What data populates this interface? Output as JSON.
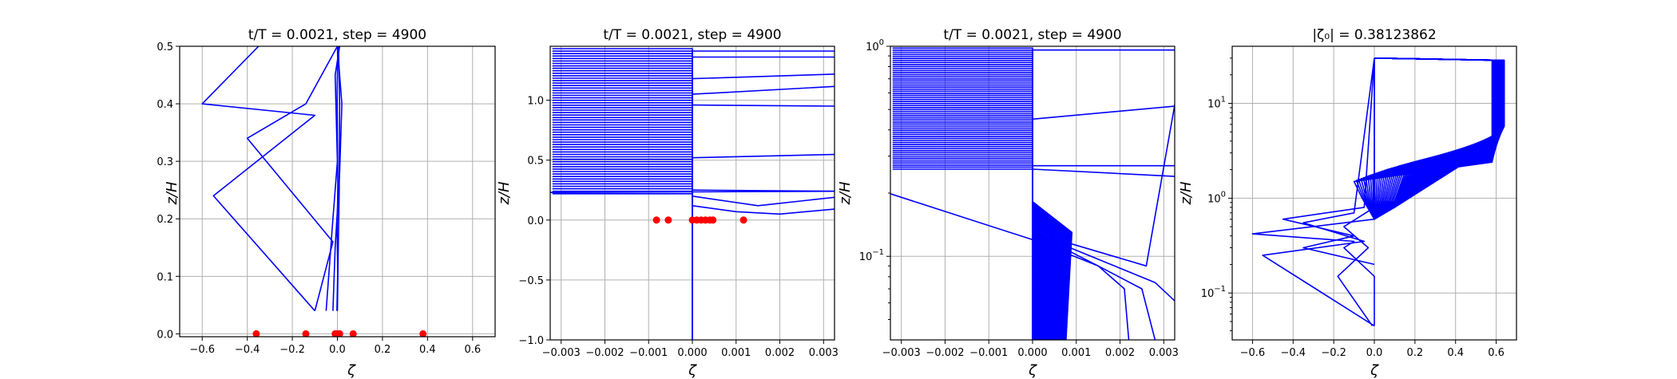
{
  "chart_data": [
    {
      "type": "line",
      "title": "t/T = 0.0021, step = 4900",
      "xlabel": "ζ",
      "ylabel": "z/H",
      "xlim": [
        -0.7,
        0.7
      ],
      "ylim": [
        -0.005,
        0.5
      ],
      "xscale": "linear",
      "yscale": "linear",
      "grid": true,
      "xticks": [
        -0.6,
        -0.4,
        -0.2,
        0.0,
        0.2,
        0.4,
        0.6
      ],
      "xtick_labels": [
        "−0.6",
        "−0.4",
        "−0.2",
        "0.0",
        "0.2",
        "0.4",
        "0.6"
      ],
      "yticks": [
        0.0,
        0.1,
        0.2,
        0.3,
        0.4,
        0.5
      ],
      "ytick_labels": [
        "0.0",
        "0.1",
        "0.2",
        "0.3",
        "0.4",
        "0.5"
      ],
      "series": [
        {
          "x": [
            -0.002,
            0.001,
            -0.001,
            0.002,
            0.0,
            -0.001,
            0.001,
            0.0
          ],
          "y": [
            0.04,
            0.1,
            0.18,
            0.26,
            0.34,
            0.42,
            0.48,
            0.5
          ]
        },
        {
          "x": [
            -0.02,
            -0.01,
            0.01,
            0.02,
            0.0
          ],
          "y": [
            0.04,
            0.15,
            0.28,
            0.4,
            0.5
          ]
        },
        {
          "x": [
            0.0,
            0.004,
            0.008,
            0.01,
            0.005
          ],
          "y": [
            0.04,
            0.15,
            0.25,
            0.4,
            0.5
          ]
        },
        {
          "x": [
            -0.05,
            -0.02,
            0.0,
            -0.01,
            0.01
          ],
          "y": [
            0.04,
            0.2,
            0.3,
            0.45,
            0.5
          ]
        },
        {
          "x": [
            -0.1,
            -0.55,
            -0.1,
            -0.6,
            -0.35
          ],
          "y": [
            0.04,
            0.24,
            0.38,
            0.4,
            0.5
          ]
        },
        {
          "x": [
            -0.1,
            -0.02,
            -0.4,
            -0.14,
            0.0
          ],
          "y": [
            0.04,
            0.16,
            0.34,
            0.4,
            0.5
          ]
        }
      ],
      "markers": {
        "x": [
          -0.36,
          -0.14,
          -0.01,
          0.0,
          0.01,
          0.07,
          0.38
        ],
        "y": [
          0.0,
          0.0,
          0.0,
          0.0,
          0.0,
          0.0,
          0.0
        ]
      }
    },
    {
      "type": "line",
      "title": "t/T = 0.0021, step = 4900",
      "xlabel": "ζ",
      "ylabel": "z/H",
      "xlim": [
        -0.00325,
        0.00325
      ],
      "ylim": [
        -1.0,
        1.45
      ],
      "xscale": "linear",
      "yscale": "linear",
      "grid": true,
      "xticks": [
        -0.003,
        -0.002,
        -0.001,
        0.0,
        0.001,
        0.002,
        0.003
      ],
      "xtick_labels": [
        "−0.003",
        "−0.002",
        "−0.001",
        "0.000",
        "0.001",
        "0.002",
        "0.003"
      ],
      "yticks": [
        -1.0,
        -0.5,
        0.0,
        0.5,
        1.0
      ],
      "ytick_labels": [
        "−1.0",
        "−0.5",
        "0.0",
        "0.5",
        "1.0"
      ],
      "fan_series": {
        "count": 60,
        "x_start": -0.0032,
        "x_end": 0.0,
        "y_bottom": 0.22,
        "y_top": 1.43
      },
      "series": [
        {
          "x": [
            -0.0033,
            0.0035
          ],
          "y": [
            0.23,
            0.24
          ]
        },
        {
          "x": [
            0.0,
            0.0035
          ],
          "y": [
            0.25,
            0.24
          ]
        },
        {
          "x": [
            0.0,
            0.001,
            0.002,
            0.0035
          ],
          "y": [
            0.12,
            0.07,
            0.05,
            0.1
          ]
        },
        {
          "x": [
            0.0,
            0.0015,
            0.0035
          ],
          "y": [
            0.2,
            0.12,
            0.2
          ]
        },
        {
          "x": [
            0.0,
            0.0035
          ],
          "y": [
            0.52,
            0.55
          ]
        },
        {
          "x": [
            0.0,
            0.0035
          ],
          "y": [
            0.96,
            0.95
          ]
        },
        {
          "x": [
            0.0,
            0.0035
          ],
          "y": [
            1.05,
            1.12
          ]
        },
        {
          "x": [
            0.0,
            0.0035
          ],
          "y": [
            1.18,
            1.22
          ]
        },
        {
          "x": [
            0.0,
            0.0035
          ],
          "y": [
            1.36,
            1.36
          ]
        },
        {
          "x": [
            0.0,
            0.0035
          ],
          "y": [
            1.41,
            1.41
          ]
        }
      ],
      "markers": {
        "x": [
          -0.00082,
          -0.00055,
          0.0,
          0.0001,
          0.0002,
          0.0003,
          0.0004,
          0.00047,
          0.00117
        ],
        "y": [
          0,
          0,
          0,
          0,
          0,
          0,
          0,
          0,
          0
        ]
      }
    },
    {
      "type": "line",
      "title": "t/T = 0.0021, step = 4900",
      "xlabel": "ζ",
      "ylabel": "z/H",
      "xlim": [
        -0.00325,
        0.00325
      ],
      "ylim": [
        0.04,
        1.0
      ],
      "xscale": "linear",
      "yscale": "log",
      "grid": true,
      "xticks": [
        -0.003,
        -0.002,
        -0.001,
        0.0,
        0.001,
        0.002,
        0.003
      ],
      "xtick_labels": [
        "−0.003",
        "−0.002",
        "−0.001",
        "0.000",
        "0.001",
        "0.002",
        "0.003"
      ],
      "yticks": [
        0.1,
        1.0
      ],
      "ytick_base": "10",
      "ytick_exponents": [
        "−1",
        "0"
      ],
      "fan_series": {
        "count": 60,
        "x_start": -0.0032,
        "x_end": 0.0,
        "y_bottom": 0.26,
        "y_top": 0.98
      },
      "diverging_series": {
        "count": 40,
        "y_knee": 0.13,
        "x_knee_max": 0.0009,
        "y_bottom": 0.04
      },
      "series": [
        {
          "x": [
            -0.0033,
            0.0,
            0.0015,
            0.0025,
            0.0028
          ],
          "y": [
            0.2,
            0.12,
            0.09,
            0.07,
            0.04
          ]
        },
        {
          "x": [
            0.0,
            0.0015,
            0.0021,
            0.0022
          ],
          "y": [
            0.13,
            0.09,
            0.07,
            0.04
          ]
        },
        {
          "x": [
            0.0,
            0.0028,
            0.0033
          ],
          "y": [
            0.13,
            0.075,
            0.06
          ]
        },
        {
          "x": [
            0.0,
            0.0033
          ],
          "y": [
            0.26,
            0.24
          ]
        },
        {
          "x": [
            0.0,
            0.0033
          ],
          "y": [
            0.27,
            0.27
          ]
        },
        {
          "x": [
            0.0,
            0.0033
          ],
          "y": [
            0.45,
            0.52
          ]
        },
        {
          "x": [
            0.0,
            0.0033
          ],
          "y": [
            0.96,
            0.96
          ]
        },
        {
          "x": [
            0.0,
            0.0026,
            0.0033
          ],
          "y": [
            0.13,
            0.09,
            0.6
          ]
        }
      ]
    },
    {
      "type": "line",
      "title": "|ζ₀| = 0.38123862",
      "xlabel": "ζ",
      "ylabel": "z/H",
      "xlim": [
        -0.7,
        0.7
      ],
      "ylim": [
        0.032,
        40
      ],
      "xscale": "linear",
      "yscale": "log",
      "grid": true,
      "xticks": [
        -0.6,
        -0.4,
        -0.2,
        0.0,
        0.2,
        0.4,
        0.6
      ],
      "xtick_labels": [
        "−0.6",
        "−0.4",
        "−0.2",
        "0.0",
        "0.2",
        "0.4",
        "0.6"
      ],
      "yticks": [
        0.1,
        1.0,
        10.0
      ],
      "ytick_base": "10",
      "ytick_exponents": [
        "−1",
        "0",
        "1"
      ],
      "profile_series": {
        "count": 60,
        "z_top": 30,
        "z_bottom": 1.5,
        "x_top_start": 0.64,
        "x_top_end": 0.58,
        "x_knee_start": 0.58,
        "x_knee_end": -0.1
      },
      "series": [
        {
          "x": [
            0.0,
            0.0,
            -0.15,
            -0.1,
            -0.6,
            0.0,
            0.0
          ],
          "y": [
            0.045,
            0.15,
            0.3,
            0.35,
            0.42,
            0.6,
            30
          ]
        },
        {
          "x": [
            0.0,
            -0.55,
            -0.05,
            -0.35,
            -0.1,
            0.0
          ],
          "y": [
            0.045,
            0.25,
            0.35,
            0.55,
            0.7,
            30
          ]
        },
        {
          "x": [
            -0.01,
            -0.18,
            -0.03,
            -0.15,
            0.0,
            0.0
          ],
          "y": [
            0.045,
            0.15,
            0.3,
            0.5,
            0.8,
            30
          ]
        },
        {
          "x": [
            0.0,
            -0.35,
            -0.1,
            -0.45,
            -0.05,
            0.0
          ],
          "y": [
            0.2,
            0.3,
            0.4,
            0.6,
            0.8,
            30
          ]
        }
      ]
    }
  ]
}
